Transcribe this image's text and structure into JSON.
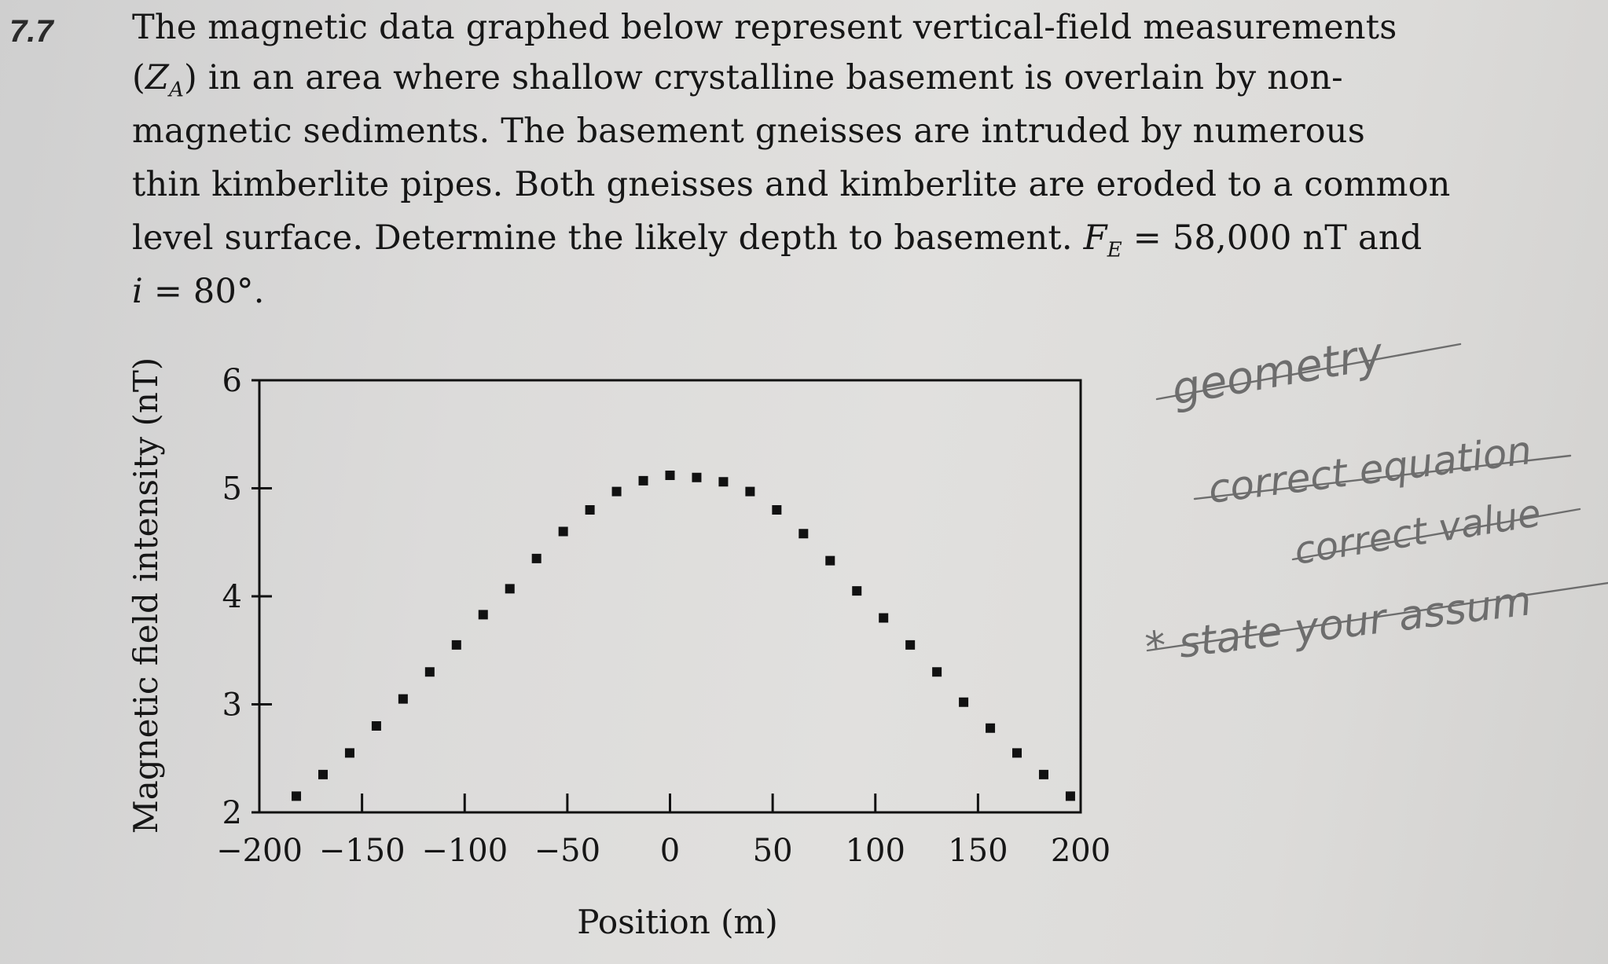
{
  "problem": {
    "number": "7.7",
    "lines": [
      "The magnetic data graphed below represent vertical-field measurements",
      "(Z_A) in an area where shallow crystalline basement is overlain by non-",
      "magnetic sediments. The basement gneisses are intruded by numerous",
      "thin kimberlite pipes. Both gneisses and kimberlite are eroded to a common",
      "level surface. Determine the likely depth to basement. F_E = 58,000 nT and",
      "i = 80°."
    ],
    "za_symbol": "Z",
    "za_subscript": "A",
    "line2_rest": ") in an area where shallow crystalline basement is overlain by non-",
    "line5_main": "level surface. Determine the likely depth to basement. ",
    "fe_symbol": "F",
    "fe_subscript": "E",
    "fe_value": " = 58,000 nT and",
    "line6_symbol": "i",
    "line6_rest": " = 80°."
  },
  "chart_data": {
    "type": "scatter",
    "title": "",
    "xlabel": "Position (m)",
    "ylabel": "Magnetic field intensity (nT)",
    "xlim": [
      -200,
      200
    ],
    "ylim": [
      2,
      6
    ],
    "xticks": [
      -200,
      -150,
      -100,
      -50,
      0,
      50,
      100,
      150,
      200
    ],
    "xtick_labels": [
      "−200",
      "−150",
      "−100",
      "−50",
      "0",
      "50",
      "100",
      "150",
      "200"
    ],
    "yticks": [
      2,
      3,
      4,
      5,
      6
    ],
    "ytick_labels": [
      "2",
      "3",
      "4",
      "5",
      "6"
    ],
    "grid": false,
    "marker": "square",
    "color": "#111111",
    "points": [
      {
        "x": -182,
        "y": 2.15
      },
      {
        "x": -169,
        "y": 2.35
      },
      {
        "x": -156,
        "y": 2.55
      },
      {
        "x": -143,
        "y": 2.8
      },
      {
        "x": -130,
        "y": 3.05
      },
      {
        "x": -117,
        "y": 3.3
      },
      {
        "x": -104,
        "y": 3.55
      },
      {
        "x": -91,
        "y": 3.83
      },
      {
        "x": -78,
        "y": 4.07
      },
      {
        "x": -65,
        "y": 4.35
      },
      {
        "x": -52,
        "y": 4.6
      },
      {
        "x": -39,
        "y": 4.8
      },
      {
        "x": -26,
        "y": 4.97
      },
      {
        "x": -13,
        "y": 5.07
      },
      {
        "x": 0,
        "y": 5.12
      },
      {
        "x": 13,
        "y": 5.1
      },
      {
        "x": 26,
        "y": 5.06
      },
      {
        "x": 39,
        "y": 4.97
      },
      {
        "x": 52,
        "y": 4.8
      },
      {
        "x": 65,
        "y": 4.58
      },
      {
        "x": 78,
        "y": 4.33
      },
      {
        "x": 91,
        "y": 4.05
      },
      {
        "x": 104,
        "y": 3.8
      },
      {
        "x": 117,
        "y": 3.55
      },
      {
        "x": 130,
        "y": 3.3
      },
      {
        "x": 143,
        "y": 3.02
      },
      {
        "x": 156,
        "y": 2.78
      },
      {
        "x": 169,
        "y": 2.55
      },
      {
        "x": 182,
        "y": 2.35
      },
      {
        "x": 195,
        "y": 2.15
      }
    ]
  },
  "handwritten_notes": {
    "color": "#6d6d6d",
    "lines": [
      "geometry",
      "correct equation",
      "correct value",
      "* state your assum"
    ]
  }
}
